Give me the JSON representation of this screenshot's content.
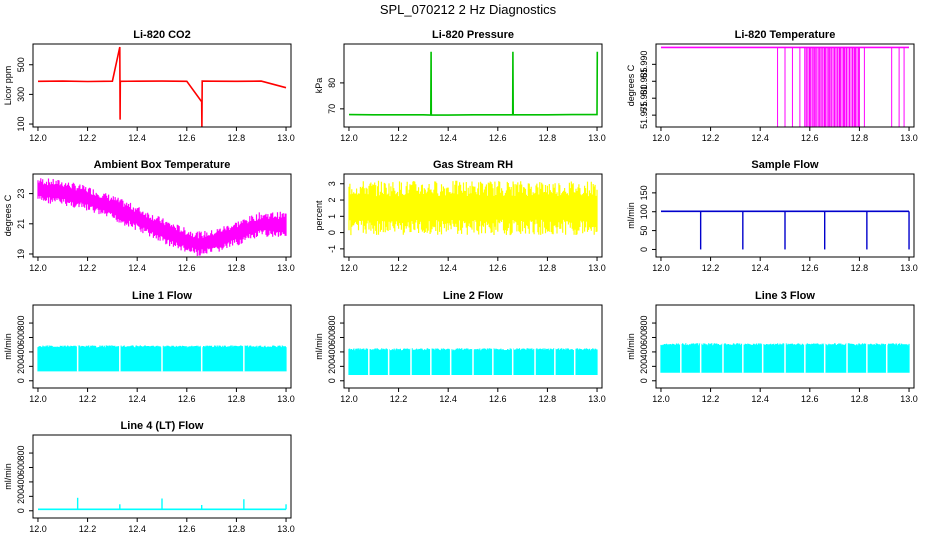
{
  "figure": {
    "title": "SPL_070212  2 Hz Diagnostics"
  },
  "chart_data": [
    {
      "id": "co2",
      "type": "line",
      "title": "Li-820 CO2",
      "ylabel": "Licor ppm",
      "color": "#ff0000",
      "xlim": [
        11.98,
        13.02
      ],
      "ylim": [
        80,
        640
      ],
      "xticks": [
        12.0,
        12.2,
        12.4,
        12.6,
        12.8,
        13.0
      ],
      "yticks": [
        100,
        300,
        500
      ],
      "series": {
        "x": [
          12.0,
          12.1,
          12.2,
          12.3,
          12.33,
          12.331,
          12.332,
          12.4,
          12.5,
          12.6,
          12.66,
          12.661,
          12.662,
          12.7,
          12.8,
          12.9,
          13.0
        ],
        "y": [
          388,
          390,
          387,
          389,
          620,
          130,
          388,
          389,
          390,
          388,
          250,
          80,
          390,
          389,
          388,
          390,
          345
        ]
      }
    },
    {
      "id": "pressure",
      "type": "line",
      "title": "Li-820 Pressure",
      "ylabel": "kPa",
      "color": "#00c000",
      "xlim": [
        11.98,
        13.02
      ],
      "ylim": [
        63,
        95
      ],
      "xticks": [
        12.0,
        12.2,
        12.4,
        12.6,
        12.8,
        13.0
      ],
      "yticks": [
        70,
        80
      ],
      "series": {
        "x": [
          12.0,
          12.1,
          12.2,
          12.3,
          12.33,
          12.331,
          12.332,
          12.4,
          12.5,
          12.6,
          12.66,
          12.661,
          12.662,
          12.7,
          12.8,
          12.9,
          13.0,
          13.001
        ],
        "y": [
          67.8,
          67.7,
          67.7,
          67.7,
          67.6,
          92,
          67.6,
          67.6,
          67.7,
          67.7,
          67.7,
          92,
          67.7,
          67.7,
          67.7,
          67.8,
          67.8,
          92
        ]
      }
    },
    {
      "id": "licor_temp",
      "type": "line",
      "title": "Li-820 Temperature",
      "ylabel": "degrees C",
      "color": "#ff00ff",
      "xlim": [
        11.98,
        13.02
      ],
      "ylim": [
        51.9715,
        51.996
      ],
      "xticks": [
        12.0,
        12.2,
        12.4,
        12.6,
        12.8,
        13.0
      ],
      "yticks": [
        51.975,
        51.98,
        51.985,
        51.99
      ],
      "series": {
        "x": [
          12.0,
          12.2,
          12.4,
          12.5,
          12.6,
          12.7,
          12.8,
          12.9,
          13.0
        ],
        "y": [
          51.995,
          51.995,
          51.995,
          51.995,
          51.995,
          51.995,
          51.995,
          51.995,
          51.995
        ]
      },
      "drops": {
        "to": 51.9715,
        "x": [
          12.47,
          12.5,
          12.53,
          12.56,
          12.58,
          12.6,
          12.62,
          12.64,
          12.66,
          12.68,
          12.7,
          12.72,
          12.74,
          12.76,
          12.78,
          12.8,
          12.82,
          12.93,
          12.96,
          12.98
        ]
      }
    },
    {
      "id": "box_temp",
      "type": "line",
      "title": "Ambient Box Temperature",
      "ylabel": "degrees C",
      "color": "#ff00ff",
      "xlim": [
        11.98,
        13.02
      ],
      "ylim": [
        18.8,
        24.3
      ],
      "xticks": [
        12.0,
        12.2,
        12.4,
        12.6,
        12.8,
        13.0
      ],
      "yticks": [
        19,
        21,
        23
      ],
      "series": {
        "x": [
          12.0,
          12.1,
          12.2,
          12.3,
          12.4,
          12.5,
          12.6,
          12.65,
          12.7,
          12.8,
          12.9,
          13.0
        ],
        "y": [
          23.3,
          23.1,
          22.7,
          22.1,
          21.4,
          20.6,
          19.9,
          19.7,
          19.8,
          20.4,
          21.0,
          21.0
        ],
        "spread": 0.8
      }
    },
    {
      "id": "rh",
      "type": "line",
      "title": "Gas Stream RH",
      "ylabel": "percent",
      "color": "#ffff00",
      "xlim": [
        11.98,
        13.02
      ],
      "ylim": [
        -1.5,
        3.6
      ],
      "xticks": [
        12.0,
        12.2,
        12.4,
        12.6,
        12.8,
        13.0
      ],
      "yticks": [
        -1,
        0,
        1,
        2,
        3
      ],
      "series": {
        "x": [
          12.0,
          13.0
        ],
        "y": [
          1.6,
          1.6
        ],
        "spread": 1.6
      }
    },
    {
      "id": "sample_flow",
      "type": "line",
      "title": "Sample Flow",
      "ylabel": "ml/min",
      "color": "#0000cc",
      "xlim": [
        11.98,
        13.02
      ],
      "ylim": [
        -20,
        200
      ],
      "xticks": [
        12.0,
        12.2,
        12.4,
        12.6,
        12.8,
        13.0
      ],
      "yticks": [
        0,
        50,
        100,
        150
      ],
      "series": {
        "x": [
          12.0,
          13.0
        ],
        "y": [
          101,
          101
        ]
      },
      "dips": {
        "to": 0,
        "x": [
          12.16,
          12.33,
          12.5,
          12.66,
          12.83,
          13.0
        ]
      }
    },
    {
      "id": "line1",
      "type": "line",
      "title": "Line 1 Flow",
      "ylabel": "ml/min",
      "color": "#00ffff",
      "xlim": [
        11.98,
        13.02
      ],
      "ylim": [
        -100,
        1050
      ],
      "xticks": [
        12.0,
        12.2,
        12.4,
        12.6,
        12.8,
        13.0
      ],
      "yticks": [
        0,
        200,
        400,
        600,
        800
      ],
      "band": {
        "from": 130,
        "to": 490
      },
      "gaps": [
        12.16,
        12.33,
        12.5,
        12.66,
        12.83
      ]
    },
    {
      "id": "line2",
      "type": "line",
      "title": "Line 2 Flow",
      "ylabel": "ml/min",
      "color": "#00ffff",
      "xlim": [
        11.98,
        13.02
      ],
      "ylim": [
        -100,
        1050
      ],
      "xticks": [
        12.0,
        12.2,
        12.4,
        12.6,
        12.8,
        13.0
      ],
      "yticks": [
        0,
        200,
        400,
        600,
        800
      ],
      "band": {
        "from": 80,
        "to": 450
      },
      "gaps": [
        12.08,
        12.16,
        12.25,
        12.33,
        12.41,
        12.5,
        12.58,
        12.66,
        12.75,
        12.83,
        12.91
      ]
    },
    {
      "id": "line3",
      "type": "line",
      "title": "Line 3 Flow",
      "ylabel": "ml/min",
      "color": "#00ffff",
      "xlim": [
        11.98,
        13.02
      ],
      "ylim": [
        -100,
        1050
      ],
      "xticks": [
        12.0,
        12.2,
        12.4,
        12.6,
        12.8,
        13.0
      ],
      "yticks": [
        0,
        200,
        400,
        600,
        800
      ],
      "band": {
        "from": 110,
        "to": 520
      },
      "gaps": [
        12.08,
        12.16,
        12.25,
        12.33,
        12.41,
        12.5,
        12.58,
        12.66,
        12.75,
        12.83,
        12.91
      ]
    },
    {
      "id": "line4",
      "type": "line",
      "title": "Line 4 (LT) Flow",
      "ylabel": "ml/min",
      "color": "#00ffff",
      "xlim": [
        11.98,
        13.02
      ],
      "ylim": [
        -100,
        1050
      ],
      "xticks": [
        12.0,
        12.2,
        12.4,
        12.6,
        12.8,
        13.0
      ],
      "yticks": [
        0,
        200,
        400,
        600,
        800
      ],
      "series": {
        "x": [
          12.0,
          13.0
        ],
        "y": [
          20,
          20
        ]
      },
      "spikes": {
        "x": [
          12.16,
          12.33,
          12.5,
          12.66,
          12.83,
          13.0
        ],
        "y": [
          180,
          90,
          170,
          80,
          160,
          90
        ]
      }
    }
  ]
}
